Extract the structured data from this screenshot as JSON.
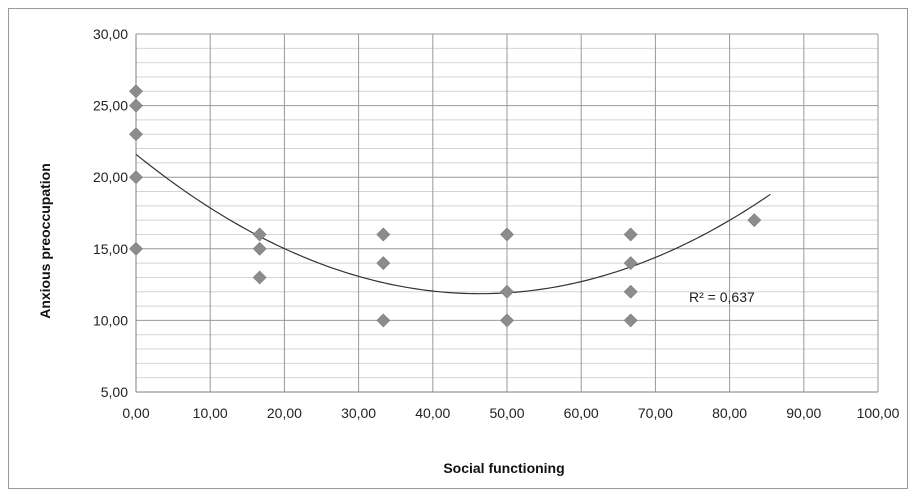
{
  "chart_data": {
    "type": "scatter",
    "xlabel": "Social functioning",
    "ylabel": "Anxious preoccupation",
    "xlim": [
      0,
      100
    ],
    "ylim": [
      5,
      30
    ],
    "x_ticks": [
      "0,00",
      "10,00",
      "20,00",
      "30,00",
      "40,00",
      "50,00",
      "60,00",
      "70,00",
      "80,00",
      "90,00",
      "100,00"
    ],
    "y_ticks": [
      "5,00",
      "10,00",
      "15,00",
      "20,00",
      "25,00",
      "30,00"
    ],
    "x_major_step": 10,
    "y_major_step": 5,
    "y_minor_step": 1,
    "grid": true,
    "point_color": "#8c8c8c",
    "trend_color": "#333333",
    "points": [
      {
        "x": 0,
        "y": 26
      },
      {
        "x": 0,
        "y": 25
      },
      {
        "x": 0,
        "y": 23
      },
      {
        "x": 0,
        "y": 20
      },
      {
        "x": 0,
        "y": 15
      },
      {
        "x": 16.67,
        "y": 16
      },
      {
        "x": 16.67,
        "y": 15
      },
      {
        "x": 16.67,
        "y": 13
      },
      {
        "x": 33.33,
        "y": 16
      },
      {
        "x": 33.33,
        "y": 14
      },
      {
        "x": 33.33,
        "y": 10
      },
      {
        "x": 50,
        "y": 16
      },
      {
        "x": 50,
        "y": 12
      },
      {
        "x": 50,
        "y": 10
      },
      {
        "x": 66.67,
        "y": 16
      },
      {
        "x": 66.67,
        "y": 14
      },
      {
        "x": 66.67,
        "y": 12
      },
      {
        "x": 66.67,
        "y": 10
      },
      {
        "x": 83.33,
        "y": 17
      }
    ],
    "trendline": {
      "type": "polynomial-2",
      "coefficients": [
        21.6,
        -0.42,
        0.00453
      ],
      "x_range": [
        0,
        85.5
      ],
      "r2_label": "R² = 0,637"
    }
  }
}
